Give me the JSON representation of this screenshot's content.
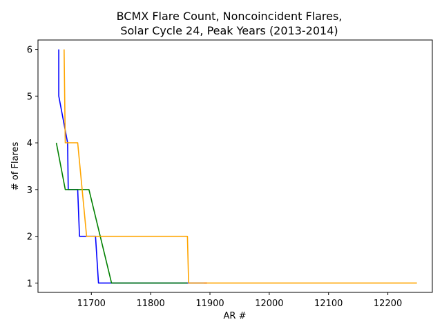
{
  "chart_data": {
    "type": "line",
    "title_lines": [
      "BCMX Flare Count, Noncoincident Flares,",
      "Solar Cycle 24, Peak Years (2013-2014)"
    ],
    "xlabel": "AR #",
    "ylabel": "# of Flares",
    "xlim": [
      11610,
      12275
    ],
    "ylim": [
      0.8,
      6.2
    ],
    "xticks": [
      11700,
      11800,
      11900,
      12000,
      12100,
      12200
    ],
    "yticks": [
      1,
      2,
      3,
      4,
      5,
      6
    ],
    "grid": false,
    "legend": "none",
    "series": [
      {
        "color": "#0000ff",
        "points": [
          [
            11645,
            6
          ],
          [
            11645,
            5
          ],
          [
            11660,
            4
          ],
          [
            11661,
            3
          ],
          [
            11677,
            3
          ],
          [
            11680,
            2
          ],
          [
            11693,
            2
          ],
          [
            11707,
            2
          ],
          [
            11712,
            1
          ],
          [
            11895,
            1
          ]
        ]
      },
      {
        "color": "#ff0000",
        "points": [
          [
            11890,
            1
          ],
          [
            11895,
            1
          ]
        ]
      },
      {
        "color": "#008000",
        "points": [
          [
            11641,
            4
          ],
          [
            11656,
            3
          ],
          [
            11696,
            3
          ],
          [
            11734,
            1
          ],
          [
            11862,
            1
          ]
        ]
      },
      {
        "color": "#ffa500",
        "points": [
          [
            11654,
            6
          ],
          [
            11656,
            4
          ],
          [
            11677,
            4
          ],
          [
            11692,
            2
          ],
          [
            11862,
            2
          ],
          [
            11864,
            1
          ],
          [
            12125,
            1
          ],
          [
            12249,
            1
          ]
        ]
      }
    ]
  }
}
